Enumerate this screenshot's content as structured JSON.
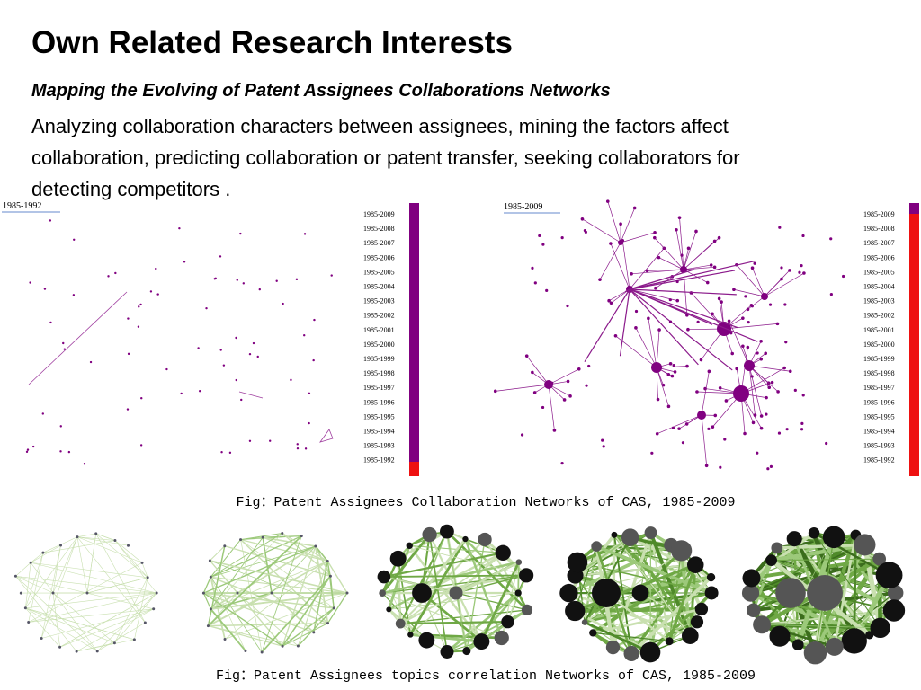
{
  "header": {
    "title": "Own Related Research Interests",
    "subtitle": "Mapping the Evolving of Patent Assignees Collaborations  Networks"
  },
  "body": {
    "lines": [
      "Analyzing collaboration characters between assignees, mining the factors affect",
      "collaboration, predicting collaboration or patent transfer, seeking collaborators for",
      "detecting competitors ."
    ]
  },
  "panels": [
    {
      "label": "1985-1992",
      "years": [
        "1985-2009",
        "1985-2008",
        "1985-2007",
        "1985-2006",
        "1985-2005",
        "1985-2004",
        "1985-2003",
        "1985-2002",
        "1985-2001",
        "1985-2000",
        "1985-1999",
        "1985-1998",
        "1985-1997",
        "1985-1996",
        "1985-1995",
        "1985-1994",
        "1985-1993",
        "1985-1992"
      ]
    },
    {
      "label": "1985-2009",
      "years": [
        "1985-2009",
        "1985-2008",
        "1985-2007",
        "1985-2006",
        "1985-2005",
        "1985-2004",
        "1985-2003",
        "1985-2002",
        "1985-2001",
        "1985-2000",
        "1985-1999",
        "1985-1998",
        "1985-1997",
        "1985-1996",
        "1985-1995",
        "1985-1994",
        "1985-1993",
        "1985-1992"
      ]
    }
  ],
  "captions": [
    "Fig：Patent Assignees Collaboration Networks of CAS, 1985-2009",
    "Fig：Patent Assignees topics correlation Networks of CAS, 1985-2009"
  ]
}
